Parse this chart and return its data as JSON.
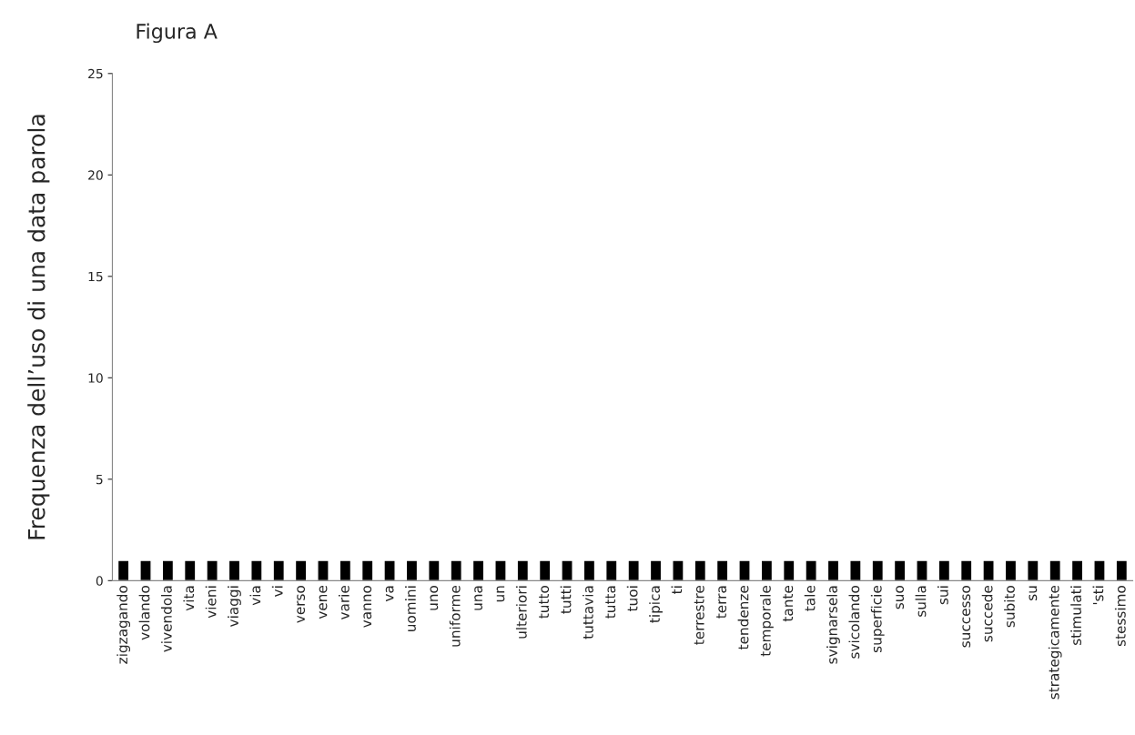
{
  "chart_data": {
    "type": "bar",
    "title": "Figura A",
    "ylabel": "Frequenza dell’uso di una data parola",
    "categories": [
      "zigzagando",
      "volando",
      "vivendola",
      "vita",
      "vieni",
      "viaggi",
      "via",
      "vi",
      "verso",
      "vene",
      "varie",
      "vanno",
      "va",
      "uomini",
      "uno",
      "uniforme",
      "una",
      "un",
      "ulteriori",
      "tutto",
      "tutti",
      "tuttavia",
      "tutta",
      "tuoi",
      "tipica",
      "ti",
      "terrestre",
      "terra",
      "tendenze",
      "temporale",
      "tante",
      "tale",
      "svignarsela",
      "svicolando",
      "superficie",
      "suo",
      "sulla",
      "sui",
      "successo",
      "succede",
      "subito",
      "su",
      "strategicamente",
      "stimulati",
      "'sti",
      "stessimo"
    ],
    "values": [
      1,
      1,
      1,
      1,
      1,
      1,
      1,
      1,
      1,
      1,
      1,
      1,
      1,
      1,
      1,
      1,
      1,
      1,
      1,
      1,
      1,
      1,
      1,
      1,
      1,
      1,
      1,
      1,
      1,
      1,
      1,
      1,
      1,
      1,
      1,
      1,
      1,
      1,
      1,
      1,
      1,
      1,
      1,
      1,
      1,
      1
    ],
    "color": "#000000",
    "ylim": [
      0,
      25
    ],
    "yticks": [
      0,
      5,
      10,
      15,
      20,
      25
    ],
    "grid": false
  }
}
